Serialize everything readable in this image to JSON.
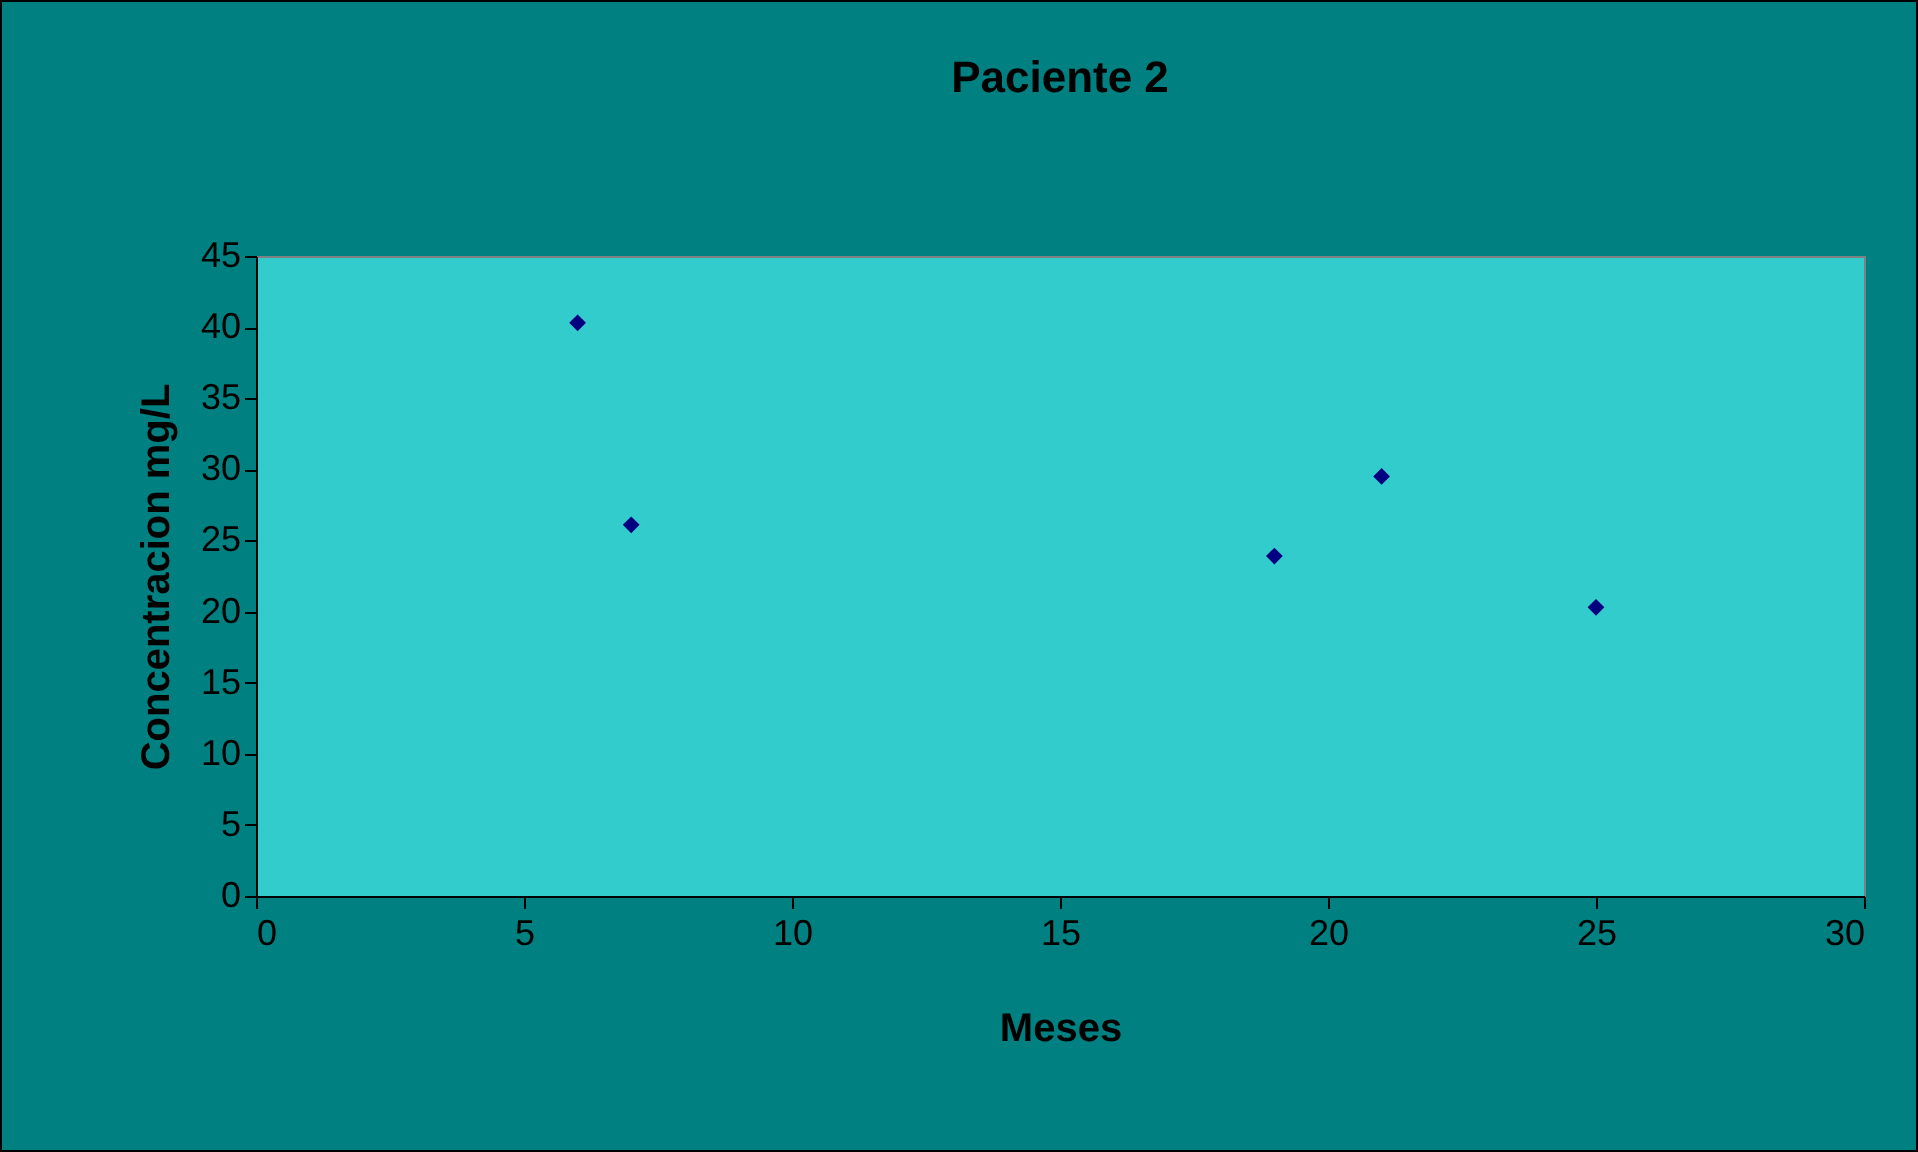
{
  "chart_data": {
    "type": "scatter",
    "title": "Paciente 2",
    "xlabel": "Meses",
    "ylabel": "Concentracion mg/L",
    "x": [
      6,
      7,
      19,
      21,
      25
    ],
    "series": [
      {
        "color": "#000080",
        "values": [
          40.3,
          26.1,
          23.9,
          29.5,
          20.3
        ]
      }
    ],
    "xlim": [
      0,
      30
    ],
    "xticks": [
      0,
      5,
      10,
      15,
      20,
      25,
      30
    ],
    "ylim": [
      0,
      45
    ],
    "yticks": [
      0,
      5,
      10,
      15,
      20,
      25,
      30,
      35,
      40,
      45
    ],
    "grid": false,
    "legend": false,
    "marker": "diamond"
  }
}
